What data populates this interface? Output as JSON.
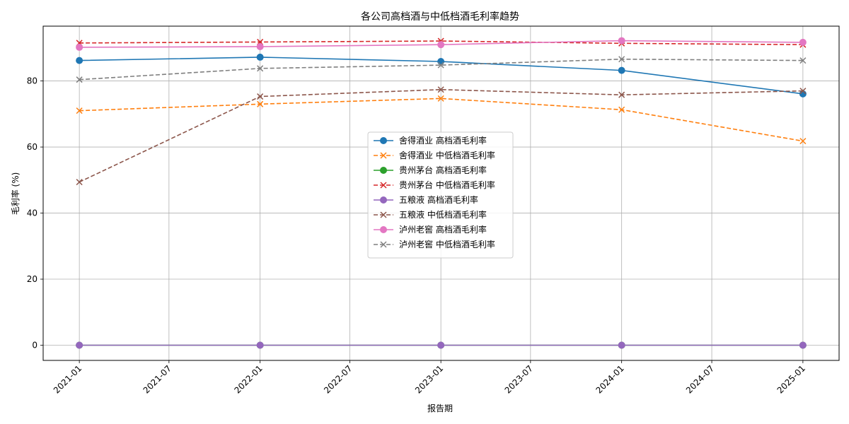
{
  "chart_data": {
    "type": "line",
    "title": "各公司高档酒与中低档酒毛利率趋势",
    "xlabel": "报告期",
    "ylabel": "毛利率 (%)",
    "x": [
      "2021-01",
      "2022-01",
      "2023-01",
      "2024-01",
      "2025-01"
    ],
    "x_ticks": [
      "2021-01",
      "2021-07",
      "2022-01",
      "2022-07",
      "2023-01",
      "2023-07",
      "2024-01",
      "2024-07",
      "2025-01"
    ],
    "y_ticks": [
      "0",
      "20",
      "40",
      "60",
      "80"
    ],
    "ylim": [
      -4.6,
      96.6
    ],
    "grid": true,
    "legend_position": "center",
    "series": [
      {
        "name": "舍得酒业 高档酒毛利率",
        "color": "#1f77b4",
        "dashed": false,
        "marker": "circle",
        "values": [
          86.2,
          87.2,
          85.9,
          83.2,
          76.1
        ]
      },
      {
        "name": "舍得酒业 中低档酒毛利率",
        "color": "#ff7f0e",
        "dashed": true,
        "marker": "x",
        "values": [
          71.0,
          73.0,
          74.7,
          71.3,
          61.8
        ]
      },
      {
        "name": "贵州茅台 高档酒毛利率",
        "color": "#2ca02c",
        "dashed": false,
        "marker": "circle",
        "values": [
          0,
          0,
          0,
          0,
          0
        ]
      },
      {
        "name": "贵州茅台 中低档酒毛利率",
        "color": "#d62728",
        "dashed": true,
        "marker": "x",
        "values": [
          91.5,
          91.8,
          92.1,
          91.4,
          91.0
        ]
      },
      {
        "name": "五粮液 高档酒毛利率",
        "color": "#9467bd",
        "dashed": false,
        "marker": "circle",
        "values": [
          0,
          0,
          0,
          0,
          0
        ]
      },
      {
        "name": "五粮液 中低档酒毛利率",
        "color": "#8c564b",
        "dashed": true,
        "marker": "x",
        "values": [
          49.4,
          75.3,
          77.4,
          75.8,
          77.0
        ]
      },
      {
        "name": "泸州老窖 高档酒毛利率",
        "color": "#e377c2",
        "dashed": false,
        "marker": "circle",
        "values": [
          90.2,
          90.4,
          91.0,
          92.2,
          91.7
        ]
      },
      {
        "name": "泸州老窖 中低档酒毛利率",
        "color": "#7f7f7f",
        "dashed": true,
        "marker": "x",
        "values": [
          80.4,
          83.8,
          84.8,
          86.6,
          86.2
        ]
      }
    ]
  }
}
